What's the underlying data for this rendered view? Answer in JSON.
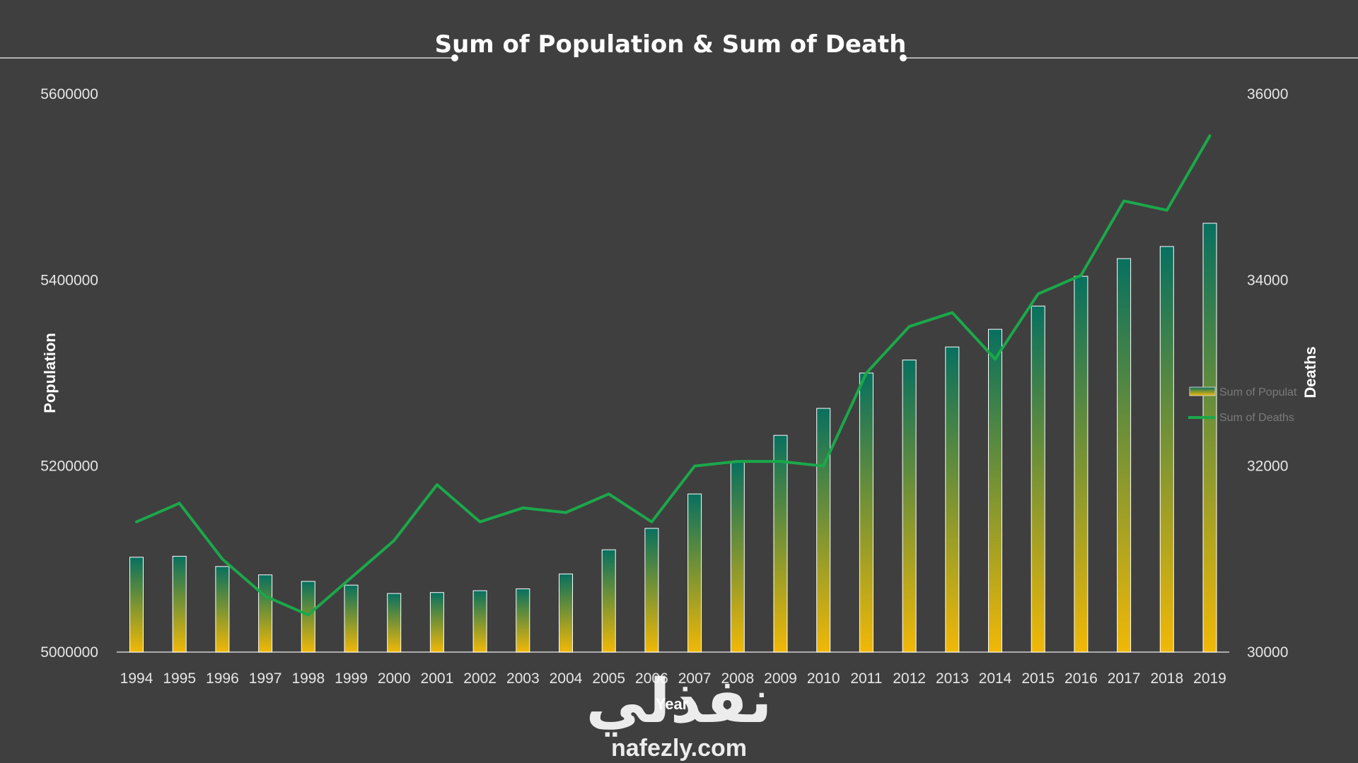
{
  "chart_data": {
    "type": "bar",
    "title": "Sum of Population & Sum of Death",
    "xlabel": "Year",
    "ylabel_left": "Population",
    "ylabel_right": "Deaths",
    "ylim_left": [
      5000000,
      5600000
    ],
    "ylim_right": [
      30000,
      36000
    ],
    "yticks_left": [
      "5000000",
      "5200000",
      "5400000",
      "5600000"
    ],
    "yticks_right": [
      "30000",
      "32000",
      "34000",
      "36000"
    ],
    "categories": [
      "1994",
      "1995",
      "1996",
      "1997",
      "1998",
      "1999",
      "2000",
      "2001",
      "2002",
      "2003",
      "2004",
      "2005",
      "2006",
      "2007",
      "2008",
      "2009",
      "2010",
      "2011",
      "2012",
      "2013",
      "2014",
      "2015",
      "2016",
      "2017",
      "2018",
      "2019"
    ],
    "series": [
      {
        "name": "Sum of Population",
        "type": "bar",
        "axis": "left",
        "values": [
          5102000,
          5103000,
          5092000,
          5083000,
          5076000,
          5072000,
          5063000,
          5064000,
          5066000,
          5068000,
          5084000,
          5110000,
          5133000,
          5170000,
          5205000,
          5233000,
          5262000,
          5300000,
          5314000,
          5328000,
          5347000,
          5372000,
          5404000,
          5423000,
          5436000,
          5461000
        ]
      },
      {
        "name": "Sum of Deaths",
        "type": "line",
        "axis": "right",
        "values": [
          31400,
          31600,
          31000,
          30600,
          30400,
          30800,
          31200,
          31800,
          31400,
          31550,
          31500,
          31700,
          31400,
          32000,
          32050,
          32050,
          32000,
          33000,
          33500,
          33650,
          33150,
          33850,
          34050,
          34850,
          34750,
          35550
        ]
      }
    ],
    "grid": false,
    "legend": "right",
    "colors": {
      "background": "#3f3f3f",
      "bar_top": "#07705f",
      "bar_bottom": "#f1b807",
      "bar_outline": "#ffffff",
      "line": "#1ba84a"
    }
  },
  "legend": {
    "population_label": "Sum of Populat",
    "deaths_label": "Sum of Deaths"
  },
  "watermark": {
    "arabic": "نفذلي",
    "latin": "nafezly.com"
  }
}
